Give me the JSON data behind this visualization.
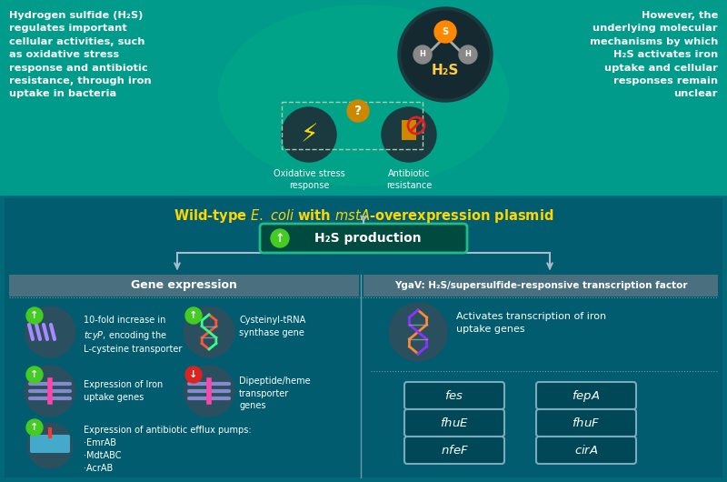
{
  "fig_width": 8.0,
  "fig_height": 5.3,
  "top_bg": "#009B8A",
  "bottom_bg": "#006878",
  "panel_bg": "#005C6E",
  "header_bg": "#4A7080",
  "circle_bg": "#2A5060",
  "box_bg": "#004858",
  "top_left_text": "Hydrogen sulfide (H₂S)\nregulates important\ncellular activities, such\nas oxidative stress\nresponse and antibiotic\nresistance, through iron\nuptake in bacteria",
  "top_right_text": "However, the\nunderlying molecular\nmechanisms by which\nH₂S activates iron\nuptake and cellular\nresponses remain\nunclear",
  "oxidative_label": "Oxidative stress\nresponse",
  "antibiotic_label": "Antibiotic\nresistance",
  "title_str": "Wild-type $\\mathit{E.\\ coli}$ with $\\mathit{mstA}$-overexpression plasmid",
  "h2s_prod_label": "H₂S production",
  "gene_expr_header": "Gene expression",
  "ygav_header": "YgaV: H₂S/supersulfide-responsive transcription factor",
  "item1_text": "10-fold increase in\n$\\mathit{tcyP}$, encoding the\nL-cysteine transporter",
  "item2_text": "Cysteinyl-tRNA\nsynthase gene",
  "item3_text": "Expression of Iron\nuptake genes",
  "item4_text": "Dipeptide/heme\ntransporter\ngenes",
  "item5_text": "Expression of antibiotic efflux pumps:\n·EmrAB\n·MdtABC\n·AcrAB",
  "ygav_text": "Activates transcription of iron\nuptake genes",
  "gene_boxes": [
    "fes",
    "fepA",
    "fhuE",
    "fhuF",
    "nfeF",
    "cirA"
  ],
  "white": "#FFFFFF",
  "yellow": "#FFD700",
  "green_arrow": "#44CC22",
  "red_arrow": "#DD2222",
  "divider": "#6A9AAA",
  "box_border": "#7AAABB",
  "arrow_line": "#AABBCC",
  "h2s_box_border": "#22BB88",
  "h2s_box_bg": "#004A40"
}
